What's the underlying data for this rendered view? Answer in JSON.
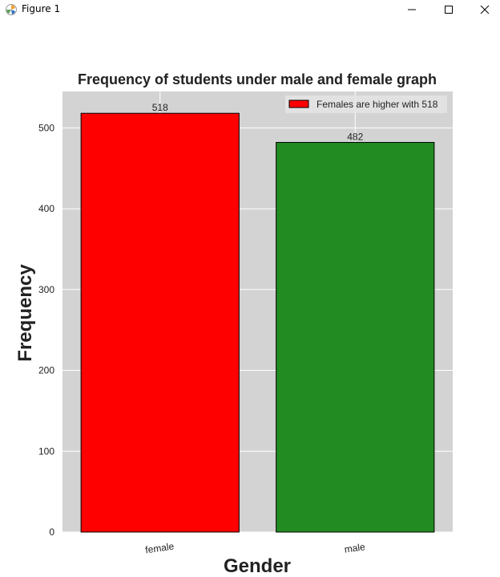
{
  "window": {
    "title": "Figure 1",
    "minimize_icon": "minimize-icon",
    "maximize_icon": "maximize-icon",
    "close_icon": "close-icon"
  },
  "chart_data": {
    "type": "bar",
    "title": "Frequency of students under male and female graph",
    "xlabel": "Gender",
    "ylabel": "Frequency",
    "categories": [
      "female",
      "male"
    ],
    "values": [
      518,
      482
    ],
    "data_labels": [
      "518",
      "482"
    ],
    "bar_colors": [
      "#ff0000",
      "#228b22"
    ],
    "bar_edge_color": "#000000",
    "ylim": [
      0,
      545
    ],
    "yticks": [
      0,
      100,
      200,
      300,
      400,
      500
    ],
    "grid": true,
    "plot_background": "#d3d3d3",
    "grid_color": "#ffffff",
    "legend": {
      "position": "upper right",
      "entries": [
        {
          "label": "Females are higher with 518",
          "color": "#ff0000"
        }
      ]
    }
  }
}
